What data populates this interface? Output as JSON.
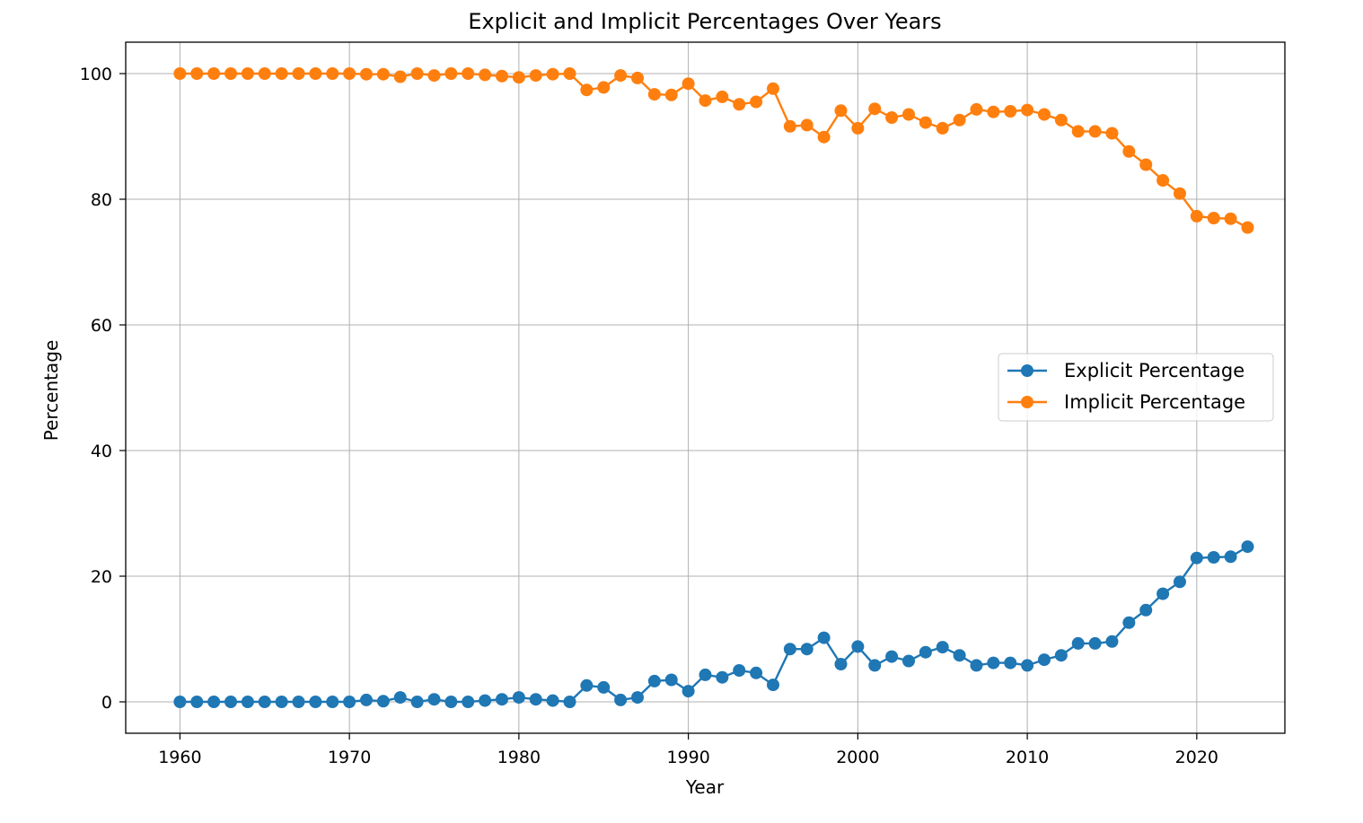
{
  "chart_data": {
    "type": "line",
    "title": "Explicit and Implicit Percentages Over Years",
    "xlabel": "Year",
    "ylabel": "Percentage",
    "xlim": [
      1956.8,
      2025.2
    ],
    "ylim": [
      -5,
      105
    ],
    "xticks": [
      1960,
      1970,
      1980,
      1990,
      2000,
      2010,
      2020
    ],
    "yticks": [
      0,
      20,
      40,
      60,
      80,
      100
    ],
    "grid": true,
    "legend_position": "center-right",
    "x": [
      1960,
      1961,
      1962,
      1963,
      1964,
      1965,
      1966,
      1967,
      1968,
      1969,
      1970,
      1971,
      1972,
      1973,
      1974,
      1975,
      1976,
      1977,
      1978,
      1979,
      1980,
      1981,
      1982,
      1983,
      1984,
      1985,
      1986,
      1987,
      1988,
      1989,
      1990,
      1991,
      1992,
      1993,
      1994,
      1995,
      1996,
      1997,
      1998,
      1999,
      2000,
      2001,
      2002,
      2003,
      2004,
      2005,
      2006,
      2007,
      2008,
      2009,
      2010,
      2011,
      2012,
      2013,
      2014,
      2015,
      2016,
      2017,
      2018,
      2019,
      2020,
      2021,
      2022,
      2023
    ],
    "series": [
      {
        "name": "Explicit Percentage",
        "color": "#1f77b4",
        "marker": "circle",
        "values": [
          0,
          0,
          0,
          0,
          0,
          0,
          0,
          0,
          0,
          0,
          0,
          0.3,
          0.1,
          0.7,
          0,
          0.4,
          0,
          0,
          0.2,
          0.4,
          0.7,
          0.4,
          0.2,
          0,
          2.6,
          2.3,
          0.3,
          0.7,
          3.3,
          3.5,
          1.7,
          4.3,
          3.9,
          5.0,
          4.6,
          2.7,
          8.4,
          8.4,
          10.2,
          6.0,
          8.8,
          5.8,
          7.2,
          6.5,
          7.9,
          8.7,
          7.4,
          5.8,
          6.2,
          6.2,
          5.8,
          6.7,
          7.4,
          9.3,
          9.3,
          9.6,
          12.6,
          14.6,
          17.2,
          19.1,
          22.9,
          23.0,
          23.1,
          24.7
        ]
      },
      {
        "name": "Implicit Percentage",
        "color": "#ff7f0e",
        "marker": "circle",
        "values": [
          100,
          100,
          100,
          100,
          100,
          100,
          100,
          100,
          100,
          100,
          100,
          99.9,
          99.9,
          99.5,
          100,
          99.7,
          100,
          100,
          99.8,
          99.6,
          99.4,
          99.7,
          99.9,
          100,
          97.4,
          97.8,
          99.7,
          99.3,
          96.7,
          96.6,
          98.4,
          95.7,
          96.3,
          95.1,
          95.5,
          97.6,
          91.6,
          91.8,
          89.9,
          94.1,
          91.3,
          94.4,
          93.0,
          93.5,
          92.2,
          91.3,
          92.6,
          94.3,
          93.9,
          94.0,
          94.2,
          93.5,
          92.6,
          90.8,
          90.8,
          90.5,
          87.6,
          85.5,
          83.0,
          80.9,
          77.3,
          77.0,
          76.9,
          75.5
        ]
      }
    ]
  }
}
